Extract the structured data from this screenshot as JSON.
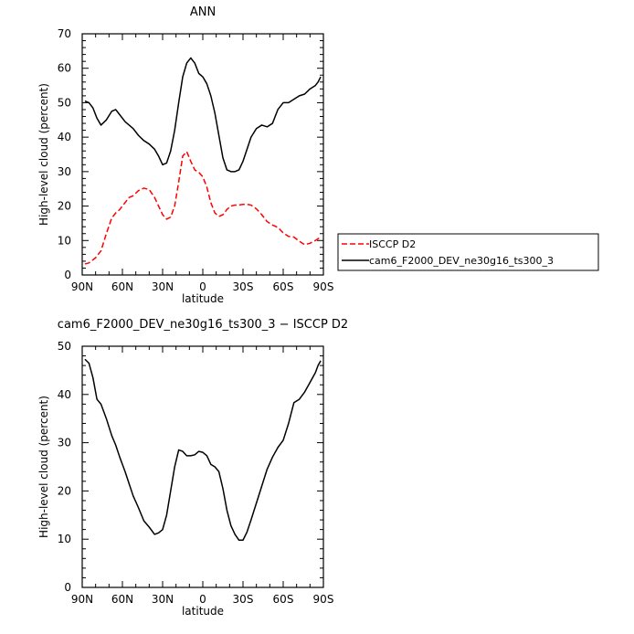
{
  "chart_data": [
    {
      "type": "line",
      "title": "ANN",
      "xlabel": "latitude",
      "ylabel": "High-level cloud (percent)",
      "xlim": [
        90,
        -90
      ],
      "ylim": [
        0,
        70
      ],
      "x_tick_values": [
        90,
        60,
        30,
        0,
        -30,
        -60,
        -90
      ],
      "x_tick_labels": [
        "90N",
        "60N",
        "30N",
        "0",
        "30S",
        "60S",
        "90S"
      ],
      "y_tick_values": [
        0,
        10,
        20,
        30,
        40,
        50,
        60,
        70
      ],
      "y_tick_labels": [
        "0",
        "10",
        "20",
        "30",
        "40",
        "50",
        "60",
        "70"
      ],
      "legend_placement": "right",
      "series": [
        {
          "name": "ISCCP D2",
          "color": "#ff0000",
          "dash": "dashed",
          "x": [
            88,
            85,
            80,
            76,
            72,
            68,
            65,
            62,
            58,
            55,
            52,
            48,
            44,
            40,
            36,
            33,
            30,
            27,
            24,
            21,
            18,
            15,
            12,
            9,
            6,
            3,
            0,
            -3,
            -6,
            -9,
            -12,
            -15,
            -18,
            -21,
            -24,
            -27,
            -30,
            -33,
            -36,
            -40,
            -44,
            -48,
            -52,
            -56,
            -60,
            -64,
            -68,
            -72,
            -76,
            -80,
            -84,
            -86,
            -88
          ],
          "y": [
            3.2,
            3.5,
            5,
            7,
            12,
            16.5,
            18,
            19,
            21,
            22.5,
            23,
            24.5,
            25.2,
            24.8,
            22.5,
            20,
            17.5,
            16.2,
            16.8,
            20,
            27,
            34.5,
            35.8,
            33,
            30.5,
            29.8,
            28.5,
            25.5,
            21,
            18,
            17,
            17.5,
            19,
            20,
            20.3,
            20.3,
            20.5,
            20.5,
            20.3,
            19.2,
            17.5,
            15.5,
            14.5,
            13.8,
            12.2,
            11.2,
            11,
            9.8,
            8.8,
            9.2,
            10,
            10.5,
            11
          ]
        },
        {
          "name": "cam6_F2000_DEV_ne30g16_ts300_3",
          "color": "#000000",
          "dash": "solid",
          "x": [
            88,
            85,
            82,
            79,
            76,
            72,
            68,
            65,
            62,
            58,
            55,
            52,
            48,
            44,
            40,
            36,
            33,
            30,
            27,
            24,
            21,
            18,
            15,
            12,
            9,
            6,
            3,
            0,
            -3,
            -6,
            -9,
            -12,
            -15,
            -18,
            -21,
            -24,
            -27,
            -30,
            -33,
            -36,
            -40,
            -44,
            -48,
            -52,
            -56,
            -60,
            -64,
            -68,
            -72,
            -76,
            -80,
            -84,
            -86,
            -88
          ],
          "y": [
            50.5,
            50,
            48.5,
            45.5,
            43.5,
            45,
            47.5,
            48,
            46.5,
            44.5,
            43.5,
            42.5,
            40.5,
            39,
            38,
            36.5,
            34.5,
            32,
            32.5,
            36,
            42,
            50,
            57.5,
            61.5,
            63,
            61.5,
            58.5,
            57.5,
            55.5,
            52,
            47,
            40.5,
            34,
            30.5,
            30,
            30,
            30.5,
            33,
            36.5,
            40,
            42.5,
            43.5,
            43,
            44,
            48,
            50,
            50,
            51,
            52,
            52.5,
            54,
            55,
            56,
            57.5
          ]
        }
      ]
    },
    {
      "type": "line",
      "title": "cam6_F2000_DEV_ne30g16_ts300_3 − ISCCP D2",
      "xlabel": "latitude",
      "ylabel": "High-level cloud (percent)",
      "xlim": [
        90,
        -90
      ],
      "ylim": [
        0,
        50
      ],
      "x_tick_values": [
        90,
        60,
        30,
        0,
        -30,
        -60,
        -90
      ],
      "x_tick_labels": [
        "90N",
        "60N",
        "30N",
        "0",
        "30S",
        "60S",
        "90S"
      ],
      "y_tick_values": [
        0,
        10,
        20,
        30,
        40,
        50
      ],
      "y_tick_labels": [
        "0",
        "10",
        "20",
        "30",
        "40",
        "50"
      ],
      "series": [
        {
          "color": "#000000",
          "dash": "solid",
          "x": [
            88,
            85,
            82,
            79,
            76,
            72,
            68,
            65,
            62,
            58,
            55,
            52,
            48,
            44,
            40,
            36,
            33,
            30,
            27,
            24,
            21,
            18,
            15,
            12,
            9,
            6,
            3,
            0,
            -3,
            -6,
            -9,
            -12,
            -15,
            -18,
            -21,
            -24,
            -27,
            -30,
            -33,
            -36,
            -40,
            -44,
            -48,
            -52,
            -56,
            -60,
            -64,
            -68,
            -72,
            -76,
            -80,
            -84,
            -86,
            -88
          ],
          "y": [
            47.3,
            46.5,
            43.5,
            39,
            38,
            35,
            31.5,
            29.5,
            27,
            24,
            21.5,
            19,
            16.5,
            13.8,
            12.5,
            11,
            11.3,
            12,
            15,
            20,
            25,
            28.5,
            28.2,
            27.3,
            27.3,
            27.5,
            28.2,
            28,
            27.3,
            25.5,
            25,
            24,
            20.5,
            16,
            12.8,
            11,
            9.8,
            9.8,
            11.5,
            14,
            17.5,
            21,
            24.5,
            27,
            29,
            30.5,
            34,
            38.3,
            39,
            40.5,
            42.5,
            44.5,
            46,
            47
          ]
        }
      ]
    }
  ]
}
